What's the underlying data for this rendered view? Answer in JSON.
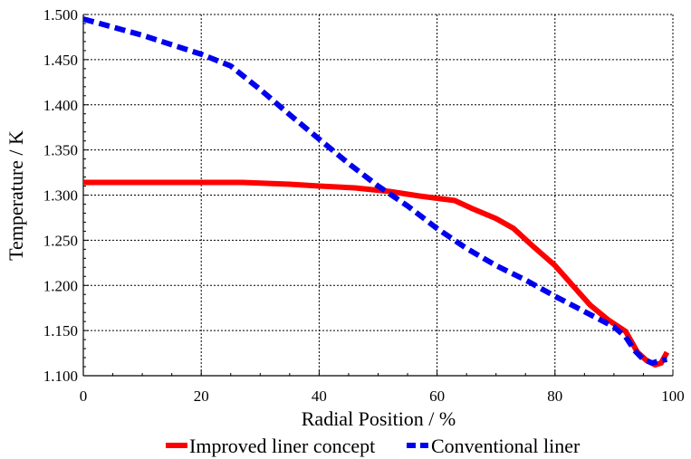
{
  "chart_data": {
    "type": "line",
    "xlabel": "Radial Position / %",
    "ylabel": "Temperature / K",
    "xlim": [
      0,
      100
    ],
    "ylim": [
      1.1,
      1.5
    ],
    "x_ticks": [
      0,
      20,
      40,
      60,
      80,
      100
    ],
    "x_tick_labels": [
      "0",
      "20",
      "40",
      "60",
      "80",
      "100"
    ],
    "y_ticks": [
      1.1,
      1.15,
      1.2,
      1.25,
      1.3,
      1.35,
      1.4,
      1.45,
      1.5
    ],
    "y_tick_labels": [
      "1.100",
      "1.150",
      "1.200",
      "1.250",
      "1.300",
      "1.350",
      "1.400",
      "1.450",
      "1.500"
    ],
    "grid": true,
    "legend_position": "bottom",
    "series": [
      {
        "name": "Improved liner concept",
        "color": "#ff0000",
        "style": "solid",
        "points": [
          [
            0,
            1.314
          ],
          [
            10,
            1.314
          ],
          [
            20,
            1.314
          ],
          [
            27,
            1.314
          ],
          [
            35,
            1.312
          ],
          [
            40,
            1.31
          ],
          [
            46,
            1.308
          ],
          [
            52,
            1.304
          ],
          [
            57,
            1.299
          ],
          [
            63,
            1.294
          ],
          [
            66,
            1.285
          ],
          [
            70,
            1.274
          ],
          [
            73,
            1.263
          ],
          [
            76,
            1.245
          ],
          [
            80,
            1.222
          ],
          [
            83,
            1.2
          ],
          [
            86,
            1.178
          ],
          [
            89,
            1.162
          ],
          [
            92,
            1.149
          ],
          [
            94,
            1.126
          ],
          [
            95.5,
            1.117
          ],
          [
            97,
            1.112
          ],
          [
            98,
            1.114
          ],
          [
            99,
            1.126
          ]
        ]
      },
      {
        "name": "Conventional liner",
        "color": "#0000ee",
        "style": "dashed",
        "points": [
          [
            0,
            1.495
          ],
          [
            10,
            1.477
          ],
          [
            20,
            1.456
          ],
          [
            25,
            1.443
          ],
          [
            30,
            1.417
          ],
          [
            35,
            1.389
          ],
          [
            40,
            1.362
          ],
          [
            45,
            1.335
          ],
          [
            50,
            1.31
          ],
          [
            55,
            1.288
          ],
          [
            60,
            1.263
          ],
          [
            65,
            1.241
          ],
          [
            70,
            1.222
          ],
          [
            75,
            1.206
          ],
          [
            80,
            1.188
          ],
          [
            85,
            1.171
          ],
          [
            90,
            1.154
          ],
          [
            92,
            1.143
          ],
          [
            93.5,
            1.128
          ],
          [
            95,
            1.118
          ],
          [
            96.5,
            1.114
          ],
          [
            98,
            1.117
          ],
          [
            99,
            1.118
          ]
        ]
      }
    ]
  }
}
